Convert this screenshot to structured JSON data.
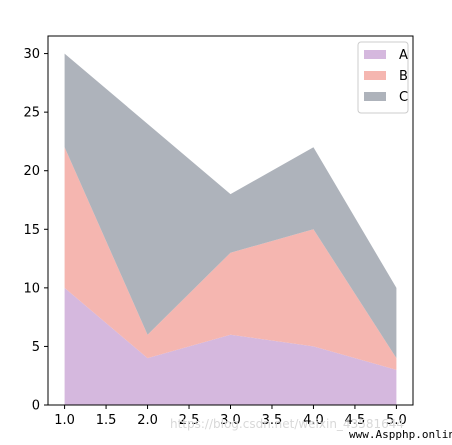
{
  "chart_data": {
    "type": "area",
    "stacked": true,
    "x": [
      1,
      2,
      3,
      4,
      5
    ],
    "series": [
      {
        "name": "A",
        "values": [
          10,
          4,
          6,
          5,
          3
        ],
        "color": "#d5b8de"
      },
      {
        "name": "B",
        "values": [
          12,
          2,
          7,
          10,
          1
        ],
        "color": "#f5b6b0"
      },
      {
        "name": "C",
        "values": [
          8,
          18,
          5,
          7,
          6
        ],
        "color": "#aeb3bb"
      }
    ],
    "xlim": [
      0.8,
      5.2
    ],
    "ylim": [
      0,
      31.5
    ],
    "xticks": [
      1.0,
      1.5,
      2.0,
      2.5,
      3.0,
      3.5,
      4.0,
      4.5,
      5.0
    ],
    "xtick_labels": [
      "1.0",
      "1.5",
      "2.0",
      "2.5",
      "3.0",
      "3.5",
      "4.0",
      "4.5",
      "5.0"
    ],
    "yticks": [
      0,
      5,
      10,
      15,
      20,
      25,
      30
    ],
    "ytick_labels": [
      "0",
      "5",
      "10",
      "15",
      "20",
      "25",
      "30"
    ],
    "grid": false,
    "legend_position": "top-right",
    "title": "",
    "xlabel": "",
    "ylabel": ""
  },
  "watermark": "https://blog.csdn.net/weixin_43581644",
  "site_label": "www.Aspphp.online"
}
